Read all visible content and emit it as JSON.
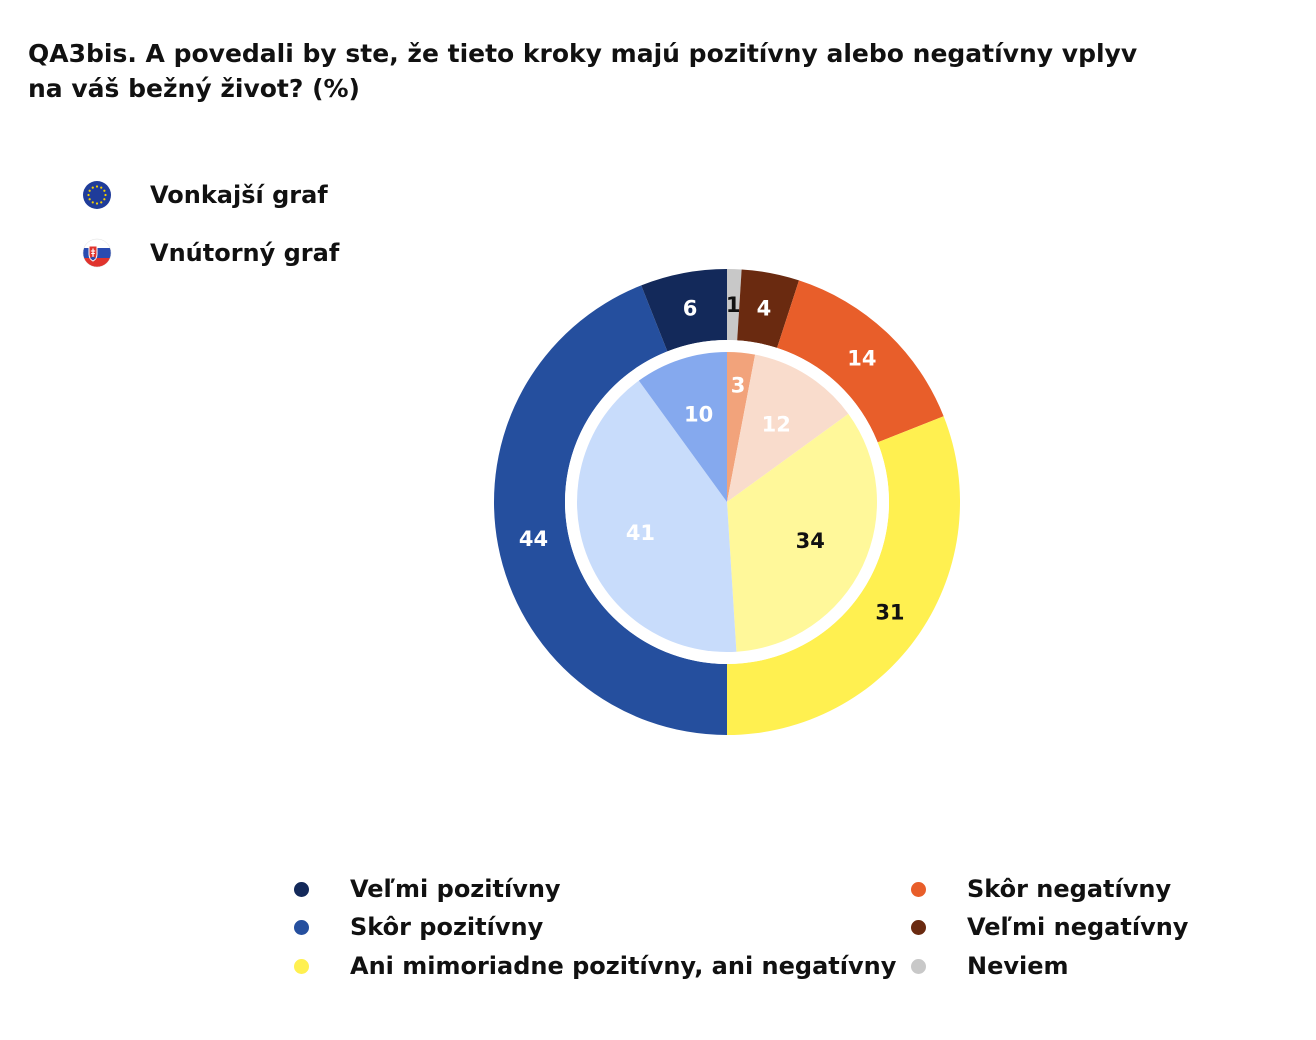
{
  "title": {
    "line1": "QA3bis. A povedali by ste, že tieto kroky majú pozitívny alebo negatívny vplyv",
    "line2": "na váš bežný život? (%)"
  },
  "top_legend": {
    "outer": {
      "label": "Vonkajší graf",
      "icon": "eu-flag-icon"
    },
    "inner": {
      "label": "Vnútorný graf",
      "icon": "slovakia-flag-icon"
    }
  },
  "legend": {
    "items": [
      {
        "label": "Veľmi pozitívny",
        "color": "#13295a"
      },
      {
        "label": "Skôr pozitívny",
        "color": "#254f9e"
      },
      {
        "label": "Ani mimoriadne pozitívny, ani negatívny",
        "color": "#fff050"
      },
      {
        "label": "Skôr negatívny",
        "color": "#e85e2a"
      },
      {
        "label": "Veľmi negatívny",
        "color": "#6a2a10"
      },
      {
        "label": "Neviem",
        "color": "#c8c8c8"
      }
    ]
  },
  "chart_data": {
    "type": "pie",
    "variant": "nested-donut",
    "title": "QA3bis. A povedali by ste, že tieto kroky majú pozitívny alebo negatívny vplyv na váš bežný život? (%)",
    "categories": [
      "Veľmi pozitívny",
      "Skôr pozitívny",
      "Ani mimoriadne pozitívny, ani negatívny",
      "Skôr negatívny",
      "Veľmi negatívny",
      "Neviem"
    ],
    "series": [
      {
        "name": "Vonkajší graf",
        "values": [
          6,
          44,
          31,
          14,
          4,
          1
        ],
        "colors": [
          "#13295a",
          "#254f9e",
          "#fff050",
          "#e85e2a",
          "#6a2a10",
          "#c8c8c8"
        ],
        "label_colors": [
          "#ffffff",
          "#ffffff",
          "#111111",
          "#ffffff",
          "#ffffff",
          "#111111"
        ]
      },
      {
        "name": "Vnútorný graf",
        "values": [
          10,
          41,
          34,
          12,
          3,
          0
        ],
        "colors": [
          "#85a9ee",
          "#c8dcfb",
          "#fff89a",
          "#f9dccc",
          "#f2a37b",
          "#c8c8c8"
        ],
        "label_colors": [
          "#ffffff",
          "#ffffff",
          "#111111",
          "#ffffff",
          "#ffffff",
          "#111111"
        ]
      }
    ]
  }
}
